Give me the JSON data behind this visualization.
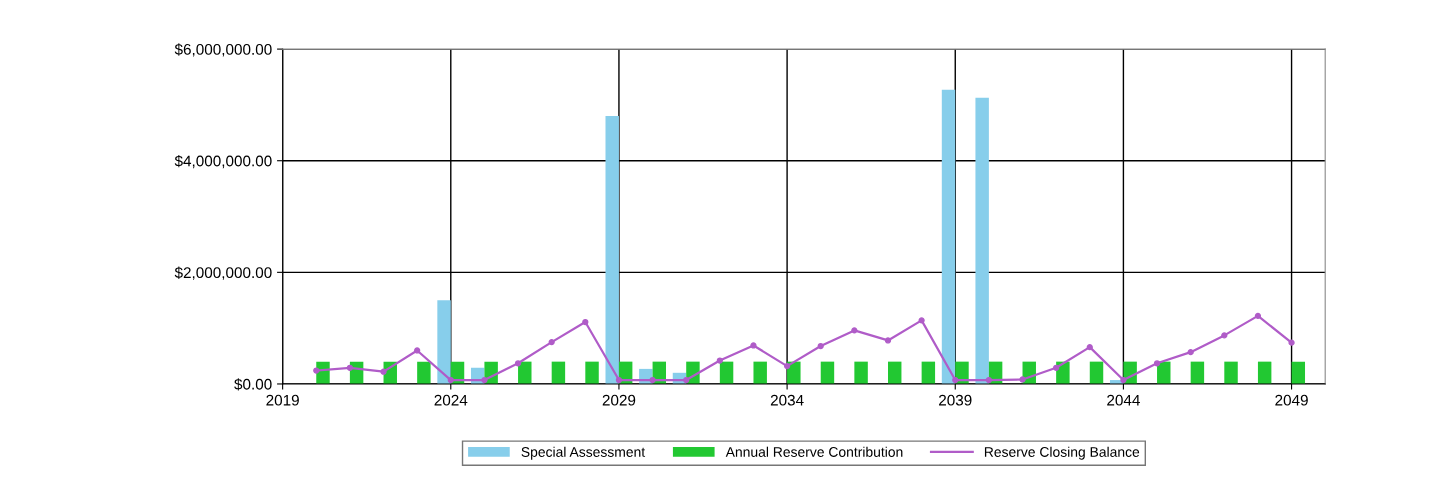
{
  "chart_data": {
    "type": "bar",
    "x": [
      2020,
      2021,
      2022,
      2023,
      2024,
      2025,
      2026,
      2027,
      2028,
      2029,
      2030,
      2031,
      2032,
      2033,
      2034,
      2035,
      2036,
      2037,
      2038,
      2039,
      2040,
      2041,
      2042,
      2043,
      2044,
      2045,
      2046,
      2047,
      2048,
      2049
    ],
    "series": [
      {
        "name": "Special Assessment",
        "color": "#87ceeb",
        "values": [
          0,
          0,
          0,
          0,
          1500000,
          290000,
          0,
          0,
          0,
          4800000,
          270000,
          200000,
          0,
          0,
          0,
          0,
          0,
          0,
          0,
          5270000,
          5130000,
          0,
          0,
          0,
          70000,
          0,
          0,
          0,
          0,
          0
        ]
      },
      {
        "name": "Annual Reserve Contribution",
        "color": "#22c832",
        "values": [
          400000,
          400000,
          400000,
          400000,
          400000,
          400000,
          400000,
          400000,
          400000,
          400000,
          400000,
          400000,
          400000,
          400000,
          400000,
          400000,
          400000,
          400000,
          400000,
          400000,
          400000,
          400000,
          400000,
          400000,
          400000,
          400000,
          400000,
          400000,
          400000,
          400000
        ]
      },
      {
        "name": "Reserve Closing Balance",
        "type": "line",
        "color": "#b05cc8",
        "marker": "circle",
        "values": [
          240000,
          290000,
          220000,
          600000,
          70000,
          70000,
          370000,
          750000,
          1110000,
          70000,
          70000,
          70000,
          420000,
          690000,
          320000,
          680000,
          960000,
          780000,
          1140000,
          70000,
          70000,
          80000,
          290000,
          660000,
          70000,
          370000,
          570000,
          870000,
          1220000,
          740000
        ]
      }
    ],
    "xlim": [
      2019,
      2050
    ],
    "xticks": [
      2019,
      2024,
      2029,
      2034,
      2039,
      2044,
      2049
    ],
    "ylim": [
      0,
      6000000
    ],
    "yticks": [
      {
        "value": 0,
        "label": "$0.00"
      },
      {
        "value": 2000000,
        "label": "$2,000,000.00"
      },
      {
        "value": 4000000,
        "label": "$4,000,000.00"
      },
      {
        "value": 6000000,
        "label": "$6,000,000.00"
      }
    ],
    "grid": true,
    "legend": "bottom"
  }
}
